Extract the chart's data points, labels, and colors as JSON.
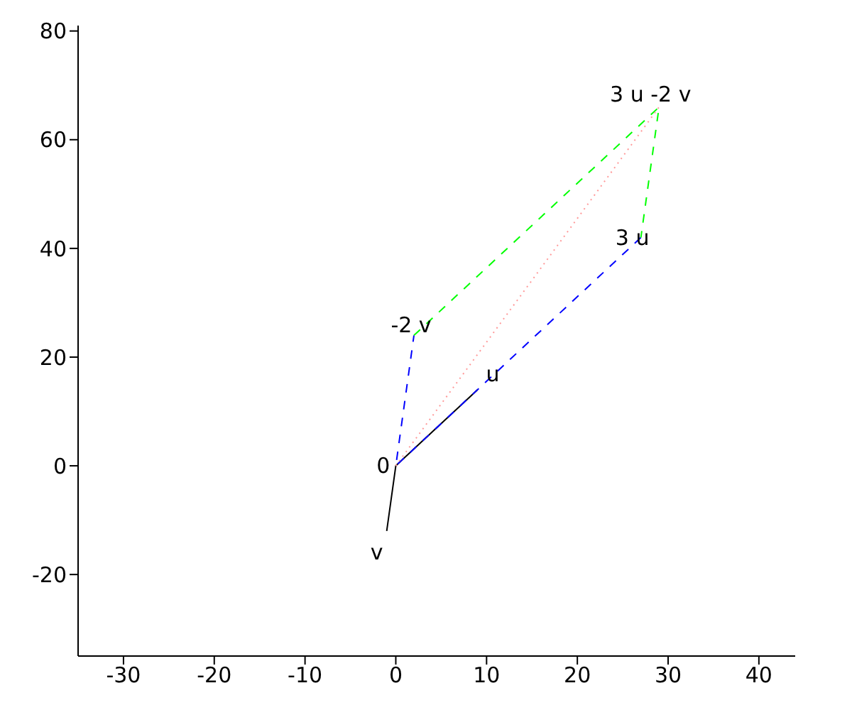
{
  "chart_data": {
    "type": "line",
    "xlim": [
      -35,
      44
    ],
    "ylim": [
      -35,
      81
    ],
    "xticks": [
      -30,
      -20,
      -10,
      0,
      10,
      20,
      30,
      40
    ],
    "yticks": [
      -20,
      0,
      20,
      40,
      60,
      80
    ],
    "marker": "none",
    "series": [
      {
        "color": "#000000",
        "line_style": "solid",
        "x": [
          -1,
          0,
          9
        ],
        "values": [
          -12,
          0,
          14
        ]
      },
      {
        "color": "#0000ff",
        "line_style": "dashed",
        "x": [
          27,
          0,
          2
        ],
        "values": [
          42,
          0,
          24
        ]
      },
      {
        "color": "#00ff00",
        "line_style": "dashed",
        "x": [
          2,
          29,
          27
        ],
        "values": [
          24,
          66,
          42
        ]
      },
      {
        "color": "#ff9999",
        "line_style": "dotted",
        "x": [
          0,
          29
        ],
        "values": [
          0,
          66
        ]
      }
    ],
    "annotations": [
      {
        "text": "0",
        "x": 0,
        "y": 0
      },
      {
        "text": "u",
        "x": 9,
        "y": 14
      },
      {
        "text": "v",
        "x": -1,
        "y": -12
      },
      {
        "text": "3 u",
        "x": 27,
        "y": 42
      },
      {
        "text": "-2 v",
        "x": 2,
        "y": 24
      },
      {
        "text": "3 u -2 v",
        "x": 29,
        "y": 66
      }
    ]
  }
}
